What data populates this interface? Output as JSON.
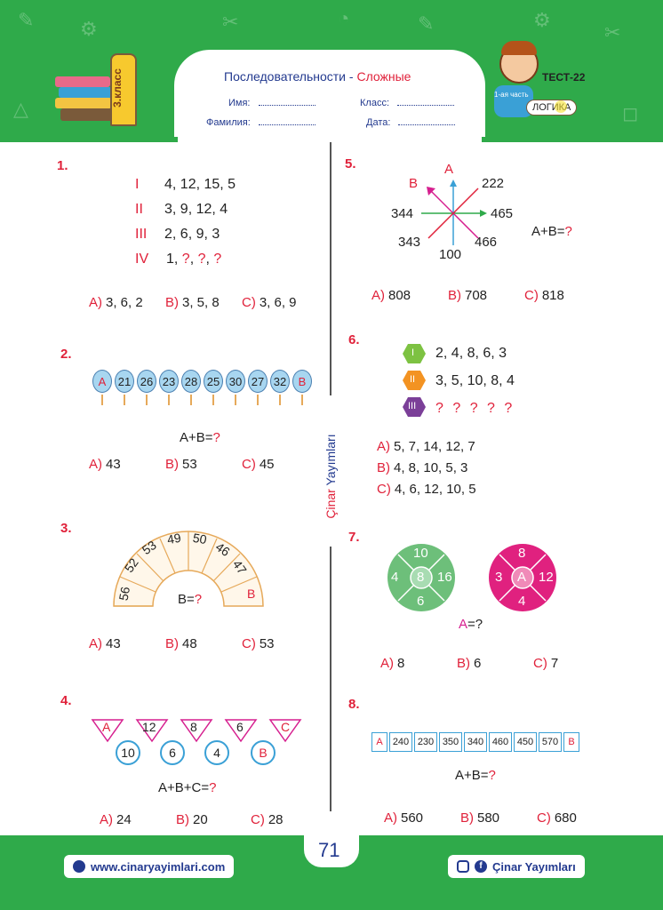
{
  "header": {
    "title_main": "Последовательности -",
    "title_accent": "Сложные",
    "name_label": "Имя:",
    "class_label": "Класс:",
    "surname_label": "Фамилия:",
    "date_label": "Дата:",
    "grade_label": "3.класс",
    "test_label": "ТЕСТ-22",
    "part_label": "1-ая часть",
    "topic_label": "ЛОГИКА"
  },
  "q1": {
    "number": "1.",
    "rows": [
      {
        "roman": "I",
        "values": "4, 12, 15, 5"
      },
      {
        "roman": "II",
        "values": "3, 9, 12, 4"
      },
      {
        "roman": "III",
        "values": "2, 6, 9, 3"
      },
      {
        "roman": "IV",
        "values": "1,"
      }
    ],
    "qmark": "?",
    "options": [
      {
        "letter": "A)",
        "text": "3, 6, 2"
      },
      {
        "letter": "B)",
        "text": "3, 5, 8"
      },
      {
        "letter": "C)",
        "text": "3, 6, 9"
      }
    ]
  },
  "q2": {
    "number": "2.",
    "items": [
      "A",
      "21",
      "26",
      "23",
      "28",
      "25",
      "30",
      "27",
      "32",
      "B"
    ],
    "question": "A+B=",
    "qmark": "?",
    "options": [
      {
        "letter": "A)",
        "text": "43"
      },
      {
        "letter": "B)",
        "text": "53"
      },
      {
        "letter": "C)",
        "text": "45"
      }
    ]
  },
  "q3": {
    "number": "3.",
    "arc_values": [
      "56",
      "52",
      "53",
      "49",
      "50",
      "46",
      "47",
      "B"
    ],
    "question": "B=",
    "qmark": "?",
    "options": [
      {
        "letter": "A)",
        "text": "43"
      },
      {
        "letter": "B)",
        "text": "48"
      },
      {
        "letter": "C)",
        "text": "53"
      }
    ]
  },
  "q4": {
    "number": "4.",
    "top": [
      "A",
      "12",
      "8",
      "6",
      "C"
    ],
    "bottom": [
      "10",
      "6",
      "4",
      "B"
    ],
    "question": "A+B+C=",
    "qmark": "?",
    "options": [
      {
        "letter": "A)",
        "text": "24"
      },
      {
        "letter": "B)",
        "text": "20"
      },
      {
        "letter": "C)",
        "text": "28"
      }
    ]
  },
  "q5": {
    "number": "5.",
    "labels": {
      "a": "A",
      "b": "B",
      "n222": "222",
      "n465": "465",
      "n466": "466",
      "n100": "100",
      "n343": "343",
      "n344": "344"
    },
    "question": "A+B=",
    "qmark": "?",
    "options": [
      {
        "letter": "A)",
        "text": "808"
      },
      {
        "letter": "B)",
        "text": "708"
      },
      {
        "letter": "C)",
        "text": "818"
      }
    ]
  },
  "q6": {
    "number": "6.",
    "rows": [
      {
        "roman": "I",
        "values": "2, 4, 8, 6, 3",
        "color": "#7dc242"
      },
      {
        "roman": "II",
        "values": "3, 5, 10, 8, 4",
        "color": "#f39322"
      },
      {
        "roman": "III",
        "values": "? ? ? ? ?",
        "color": "#7b3f98"
      }
    ],
    "options": [
      {
        "letter": "A)",
        "text": "5, 7, 14, 12, 7"
      },
      {
        "letter": "B)",
        "text": "4, 8, 10, 5, 3"
      },
      {
        "letter": "C)",
        "text": "4, 6, 12, 10, 5"
      }
    ]
  },
  "q7": {
    "number": "7.",
    "wheel1": {
      "top": "10",
      "left": "4",
      "center": "8",
      "right": "16",
      "bottom": "6"
    },
    "wheel2": {
      "top": "8",
      "left": "3",
      "center": "A",
      "right": "12",
      "bottom": "4"
    },
    "question_a": "A",
    "question_rest": "=?",
    "options": [
      {
        "letter": "A)",
        "text": "8"
      },
      {
        "letter": "B)",
        "text": "6"
      },
      {
        "letter": "C)",
        "text": "7"
      }
    ]
  },
  "q8": {
    "number": "8.",
    "boxes": [
      "A",
      "240",
      "230",
      "350",
      "340",
      "460",
      "450",
      "570",
      "B"
    ],
    "question": "A+B=",
    "qmark": "?",
    "options": [
      {
        "letter": "A)",
        "text": "560"
      },
      {
        "letter": "B)",
        "text": "580"
      },
      {
        "letter": "C)",
        "text": "680"
      }
    ]
  },
  "vertical_brand": {
    "part1": "Çinar",
    "part2": "Yayımları"
  },
  "page_number": "71",
  "footer": {
    "website": "www.cinaryayimlari.com",
    "social": "Çinar Yayımları"
  },
  "colors": {
    "green": "#2faa4a",
    "red": "#e0213a",
    "navy": "#233a8f",
    "magenta": "#d61f8f",
    "teal": "#3aa0d6"
  }
}
